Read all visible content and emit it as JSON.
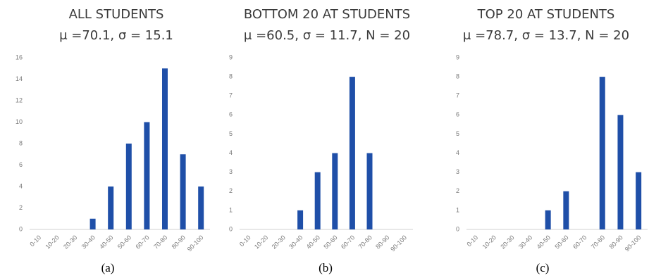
{
  "chart_data": [
    {
      "type": "bar",
      "title": "ALL STUDENTS",
      "subtitle": "μ =70.1, σ = 15.1",
      "caption": "(a)",
      "categories": [
        "0-10",
        "10-20",
        "20-30",
        "30-40",
        "40-50",
        "50-60",
        "60-70",
        "70-80",
        "80-90",
        "90-100"
      ],
      "values": [
        0,
        0,
        0,
        1,
        4,
        8,
        10,
        15,
        7,
        4
      ],
      "yticks": [
        0,
        2,
        4,
        6,
        8,
        10,
        12,
        14,
        16
      ],
      "ylim": [
        0,
        16
      ],
      "color": "#1f4fa8"
    },
    {
      "type": "bar",
      "title": "BOTTOM 20 AT STUDENTS",
      "subtitle": "μ =60.5, σ = 11.7, N = 20",
      "caption": "(b)",
      "categories": [
        "0-10",
        "10-20",
        "20-30",
        "30-40",
        "40-50",
        "50-60",
        "60-70",
        "70-80",
        "80-90",
        "90-100"
      ],
      "values": [
        0,
        0,
        0,
        1,
        3,
        4,
        8,
        4,
        0,
        0
      ],
      "yticks": [
        0,
        1,
        2,
        3,
        4,
        5,
        6,
        7,
        8,
        9
      ],
      "ylim": [
        0,
        9
      ],
      "color": "#1f4fa8"
    },
    {
      "type": "bar",
      "title": "TOP 20 AT STUDENTS",
      "subtitle": "μ =78.7, σ = 13.7, N = 20",
      "caption": "(c)",
      "categories": [
        "0-10",
        "10-20",
        "20-30",
        "30-40",
        "40-50",
        "50-60",
        "60-70",
        "70-80",
        "80-90",
        "90-100"
      ],
      "values": [
        0,
        0,
        0,
        0,
        1,
        2,
        0,
        8,
        6,
        3
      ],
      "yticks": [
        0,
        1,
        2,
        3,
        4,
        5,
        6,
        7,
        8,
        9
      ],
      "ylim": [
        0,
        9
      ],
      "color": "#1f4fa8"
    }
  ]
}
